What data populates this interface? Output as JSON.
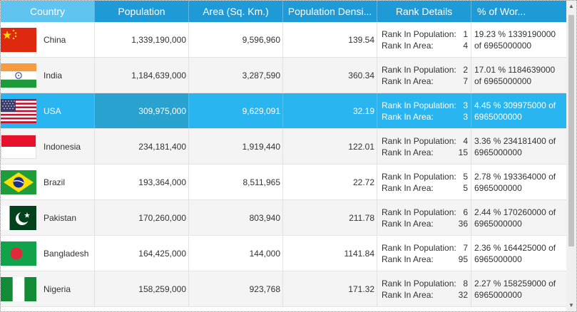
{
  "columns": [
    "Country",
    "Population",
    "Area (Sq. Km.)",
    "Population Densi...",
    "Rank Details",
    "% of Wor..."
  ],
  "rank_labels": {
    "population": "Rank In Population:",
    "area": "Rank In Area:"
  },
  "rows": [
    {
      "flag": "china-flag",
      "country": "China",
      "population": "1,339,190,000",
      "area": "9,596,960",
      "density": "139.54",
      "rank_pop": "1",
      "rank_area": "4",
      "pct": "19.23 % 1339190000 of 6965000000"
    },
    {
      "flag": "india-flag",
      "country": "India",
      "population": "1,184,639,000",
      "area": "3,287,590",
      "density": "360.34",
      "rank_pop": "2",
      "rank_area": "7",
      "pct": "17.01 % 1184639000 of 6965000000"
    },
    {
      "flag": "usa-flag",
      "country": "USA",
      "population": "309,975,000",
      "area": "9,629,091",
      "density": "32.19",
      "rank_pop": "3",
      "rank_area": "3",
      "pct": "4.45 % 309975000 of 6965000000"
    },
    {
      "flag": "indonesia-flag",
      "country": "Indonesia",
      "population": "234,181,400",
      "area": "1,919,440",
      "density": "122.01",
      "rank_pop": "4",
      "rank_area": "15",
      "pct": "3.36 % 234181400 of 6965000000"
    },
    {
      "flag": "brazil-flag",
      "country": "Brazil",
      "population": "193,364,000",
      "area": "8,511,965",
      "density": "22.72",
      "rank_pop": "5",
      "rank_area": "5",
      "pct": "2.78 % 193364000 of 6965000000"
    },
    {
      "flag": "pakistan-flag",
      "country": "Pakistan",
      "population": "170,260,000",
      "area": "803,940",
      "density": "211.78",
      "rank_pop": "6",
      "rank_area": "36",
      "pct": "2.44 % 170260000 of 6965000000"
    },
    {
      "flag": "bangladesh-flag",
      "country": "Bangladesh",
      "population": "164,425,000",
      "area": "144,000",
      "density": "1141.84",
      "rank_pop": "7",
      "rank_area": "95",
      "pct": "2.36 % 164425000 of 6965000000"
    },
    {
      "flag": "nigeria-flag",
      "country": "Nigeria",
      "population": "158,259,000",
      "area": "923,768",
      "density": "171.32",
      "rank_pop": "8",
      "rank_area": "32",
      "pct": "2.27 % 158259000 of 6965000000"
    }
  ],
  "selected_row": 2,
  "scroll": {
    "up_glyph": "▲",
    "down_glyph": "▼"
  },
  "colors": {
    "header": "#1e9ad6",
    "header_first": "#5fc4ef",
    "selected": "#29b6f0"
  }
}
